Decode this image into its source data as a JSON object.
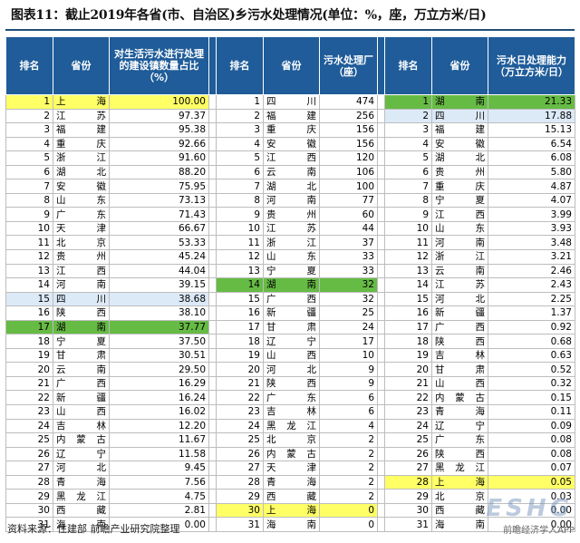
{
  "title": "图表11：截止2019年各省(市、自治区)乡污水处理情况(单位：%，座，万立方米/日)",
  "headers": {
    "rank": "排名",
    "province": "省份",
    "ratio": "对生活污水进行处理的建设镇数量占比（%）",
    "plants": "污水处理厂（座）",
    "capacity": "污水日处理能力（万立方米/日）"
  },
  "rows": [
    {
      "r1": "1",
      "p1": "上海",
      "v1": "100.00",
      "r2": "1",
      "p2": "四川",
      "v2": "474",
      "r3": "1",
      "p3": "湖南",
      "v3": "21.33"
    },
    {
      "r1": "2",
      "p1": "江苏",
      "v1": "97.37",
      "r2": "2",
      "p2": "福建",
      "v2": "256",
      "r3": "2",
      "p3": "四川",
      "v3": "17.88"
    },
    {
      "r1": "3",
      "p1": "福建",
      "v1": "95.38",
      "r2": "3",
      "p2": "重庆",
      "v2": "156",
      "r3": "3",
      "p3": "福建",
      "v3": "15.13"
    },
    {
      "r1": "4",
      "p1": "重庆",
      "v1": "92.66",
      "r2": "4",
      "p2": "安徽",
      "v2": "156",
      "r3": "4",
      "p3": "安徽",
      "v3": "6.54"
    },
    {
      "r1": "5",
      "p1": "浙江",
      "v1": "91.60",
      "r2": "5",
      "p2": "江西",
      "v2": "120",
      "r3": "5",
      "p3": "湖北",
      "v3": "6.08"
    },
    {
      "r1": "6",
      "p1": "湖北",
      "v1": "88.20",
      "r2": "6",
      "p2": "云南",
      "v2": "106",
      "r3": "6",
      "p3": "贵州",
      "v3": "5.80"
    },
    {
      "r1": "7",
      "p1": "安徽",
      "v1": "75.95",
      "r2": "7",
      "p2": "湖北",
      "v2": "100",
      "r3": "7",
      "p3": "重庆",
      "v3": "4.87"
    },
    {
      "r1": "8",
      "p1": "山东",
      "v1": "73.13",
      "r2": "8",
      "p2": "河南",
      "v2": "77",
      "r3": "8",
      "p3": "宁夏",
      "v3": "4.07"
    },
    {
      "r1": "9",
      "p1": "广东",
      "v1": "71.43",
      "r2": "9",
      "p2": "贵州",
      "v2": "60",
      "r3": "9",
      "p3": "江西",
      "v3": "3.99"
    },
    {
      "r1": "10",
      "p1": "天津",
      "v1": "66.67",
      "r2": "10",
      "p2": "江苏",
      "v2": "44",
      "r3": "10",
      "p3": "山东",
      "v3": "3.93"
    },
    {
      "r1": "11",
      "p1": "北京",
      "v1": "53.33",
      "r2": "11",
      "p2": "浙江",
      "v2": "37",
      "r3": "11",
      "p3": "河南",
      "v3": "3.48"
    },
    {
      "r1": "12",
      "p1": "贵州",
      "v1": "45.24",
      "r2": "12",
      "p2": "山东",
      "v2": "33",
      "r3": "12",
      "p3": "浙江",
      "v3": "3.21"
    },
    {
      "r1": "13",
      "p1": "江西",
      "v1": "44.04",
      "r2": "13",
      "p2": "宁夏",
      "v2": "33",
      "r3": "13",
      "p3": "云南",
      "v3": "2.46"
    },
    {
      "r1": "14",
      "p1": "河南",
      "v1": "39.15",
      "r2": "14",
      "p2": "湖南",
      "v2": "32",
      "r3": "14",
      "p3": "江苏",
      "v3": "2.43"
    },
    {
      "r1": "15",
      "p1": "四川",
      "v1": "38.68",
      "r2": "15",
      "p2": "广西",
      "v2": "32",
      "r3": "15",
      "p3": "河北",
      "v3": "2.25"
    },
    {
      "r1": "16",
      "p1": "陕西",
      "v1": "38.10",
      "r2": "16",
      "p2": "新疆",
      "v2": "25",
      "r3": "16",
      "p3": "新疆",
      "v3": "1.37"
    },
    {
      "r1": "17",
      "p1": "湖南",
      "v1": "37.77",
      "r2": "17",
      "p2": "甘肃",
      "v2": "24",
      "r3": "17",
      "p3": "广西",
      "v3": "0.92"
    },
    {
      "r1": "18",
      "p1": "宁夏",
      "v1": "37.50",
      "r2": "18",
      "p2": "辽宁",
      "v2": "17",
      "r3": "18",
      "p3": "陕西",
      "v3": "0.68"
    },
    {
      "r1": "19",
      "p1": "甘肃",
      "v1": "30.51",
      "r2": "19",
      "p2": "山西",
      "v2": "10",
      "r3": "19",
      "p3": "吉林",
      "v3": "0.63"
    },
    {
      "r1": "20",
      "p1": "云南",
      "v1": "29.50",
      "r2": "20",
      "p2": "河北",
      "v2": "9",
      "r3": "20",
      "p3": "甘肃",
      "v3": "0.52"
    },
    {
      "r1": "21",
      "p1": "广西",
      "v1": "16.29",
      "r2": "21",
      "p2": "陕西",
      "v2": "9",
      "r3": "21",
      "p3": "山西",
      "v3": "0.32"
    },
    {
      "r1": "22",
      "p1": "新疆",
      "v1": "16.24",
      "r2": "22",
      "p2": "广东",
      "v2": "6",
      "r3": "22",
      "p3": "内蒙古",
      "v3": "0.15"
    },
    {
      "r1": "23",
      "p1": "山西",
      "v1": "16.02",
      "r2": "23",
      "p2": "吉林",
      "v2": "6",
      "r3": "23",
      "p3": "青海",
      "v3": "0.11"
    },
    {
      "r1": "24",
      "p1": "吉林",
      "v1": "12.20",
      "r2": "24",
      "p2": "黑龙江",
      "v2": "4",
      "r3": "24",
      "p3": "辽宁",
      "v3": "0.09"
    },
    {
      "r1": "25",
      "p1": "内蒙古",
      "v1": "11.67",
      "r2": "25",
      "p2": "北京",
      "v2": "2",
      "r3": "25",
      "p3": "广东",
      "v3": "0.08"
    },
    {
      "r1": "26",
      "p1": "辽宁",
      "v1": "11.58",
      "r2": "26",
      "p2": "内蒙古",
      "v2": "2",
      "r3": "26",
      "p3": "陕西",
      "v3": "0.08"
    },
    {
      "r1": "27",
      "p1": "河北",
      "v1": "9.45",
      "r2": "27",
      "p2": "天津",
      "v2": "2",
      "r3": "27",
      "p3": "黑龙江",
      "v3": "0.07"
    },
    {
      "r1": "28",
      "p1": "青海",
      "v1": "7.56",
      "r2": "28",
      "p2": "青海",
      "v2": "2",
      "r3": "28",
      "p3": "上海",
      "v3": "0.05"
    },
    {
      "r1": "29",
      "p1": "黑龙江",
      "v1": "4.75",
      "r2": "29",
      "p2": "西藏",
      "v2": "2",
      "r3": "29",
      "p3": "北京",
      "v3": "0.03"
    },
    {
      "r1": "30",
      "p1": "西藏",
      "v1": "2.81",
      "r2": "30",
      "p2": "上海",
      "v2": "0",
      "r3": "30",
      "p3": "西藏",
      "v3": "0.00"
    },
    {
      "r1": "31",
      "p1": "海南",
      "v1": "0.00",
      "r2": "31",
      "p2": "海南",
      "v2": "0",
      "r3": "31",
      "p3": "海南",
      "v3": "0.00"
    }
  ],
  "highlights": {
    "yellow": "#ffff66",
    "light_blue": "#dce9f7",
    "green": "#66bb44",
    "header_bg": "#1f5c99"
  },
  "source": "资料来源：住建部 前瞻产业研究院整理",
  "watermark": "ESHG",
  "watermark_caption": "前瞻经济学人APP"
}
